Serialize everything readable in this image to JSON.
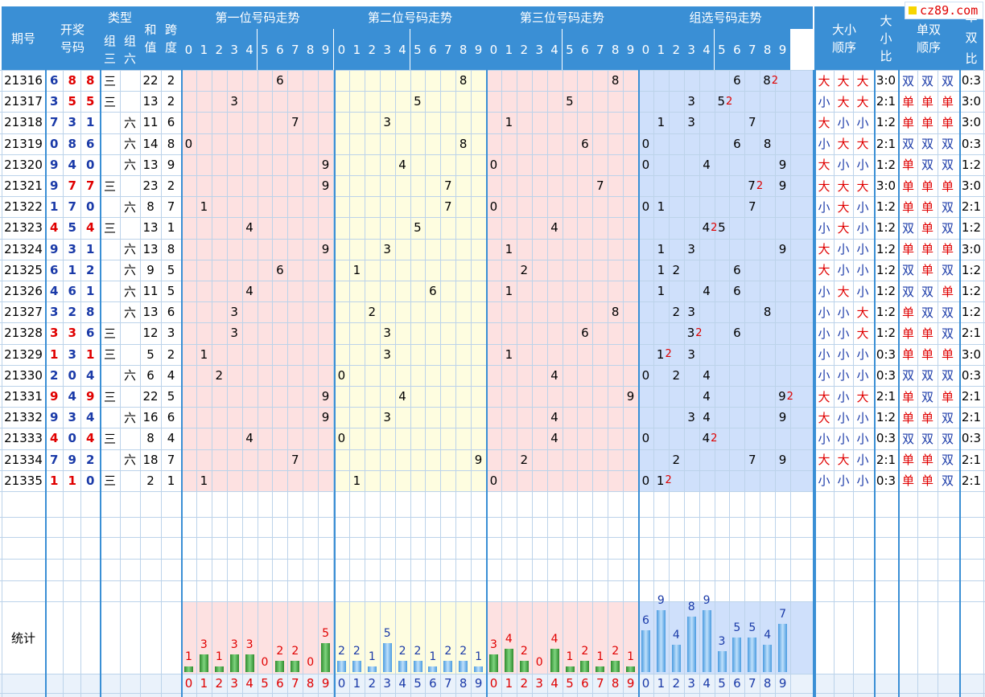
{
  "site": {
    "logo_text": "cz89.com"
  },
  "headers": {
    "period": "期号",
    "draw": "开奖号码",
    "type": "类型",
    "type_sub": [
      "组三",
      "组六"
    ],
    "sum": "和值",
    "span": "跨度",
    "pos1": "第一位号码走势",
    "pos2": "第二位号码走势",
    "pos3": "第三位号码走势",
    "group": "组选号码走势",
    "size_order": "大小顺序",
    "size_ratio": "大小比",
    "odd_order": "单双顺序",
    "odd_ratio": "单双比",
    "digits": [
      "0",
      "1",
      "2",
      "3",
      "4",
      "5",
      "6",
      "7",
      "8",
      "9"
    ]
  },
  "type_labels": {
    "zu3": "三",
    "zu6": "六"
  },
  "stats_label": "统计",
  "colors": {
    "header": "#3a8fd5",
    "pink": "#fde1e1",
    "yellow": "#fefde0",
    "blue_bg": "#cfe0fb",
    "red": "#e00000",
    "blue": "#1a3aa8"
  },
  "rows": [
    {
      "period": "21316",
      "digits": [
        6,
        8,
        8
      ],
      "type": "zu3",
      "sum": 22,
      "span": 2,
      "size": [
        "大",
        "大",
        "大"
      ],
      "size_ratio": "3:0",
      "odd": [
        "双",
        "双",
        "双"
      ],
      "odd_ratio": "0:3"
    },
    {
      "period": "21317",
      "digits": [
        3,
        5,
        5
      ],
      "type": "zu3",
      "sum": 13,
      "span": 2,
      "size": [
        "小",
        "大",
        "大"
      ],
      "size_ratio": "2:1",
      "odd": [
        "单",
        "单",
        "单"
      ],
      "odd_ratio": "3:0"
    },
    {
      "period": "21318",
      "digits": [
        7,
        3,
        1
      ],
      "type": "zu6",
      "sum": 11,
      "span": 6,
      "size": [
        "大",
        "小",
        "小"
      ],
      "size_ratio": "1:2",
      "odd": [
        "单",
        "单",
        "单"
      ],
      "odd_ratio": "3:0"
    },
    {
      "period": "21319",
      "digits": [
        0,
        8,
        6
      ],
      "type": "zu6",
      "sum": 14,
      "span": 8,
      "size": [
        "小",
        "大",
        "大"
      ],
      "size_ratio": "2:1",
      "odd": [
        "双",
        "双",
        "双"
      ],
      "odd_ratio": "0:3"
    },
    {
      "period": "21320",
      "digits": [
        9,
        4,
        0
      ],
      "type": "zu6",
      "sum": 13,
      "span": 9,
      "size": [
        "大",
        "小",
        "小"
      ],
      "size_ratio": "1:2",
      "odd": [
        "单",
        "双",
        "双"
      ],
      "odd_ratio": "1:2"
    },
    {
      "period": "21321",
      "digits": [
        9,
        7,
        7
      ],
      "type": "zu3",
      "sum": 23,
      "span": 2,
      "size": [
        "大",
        "大",
        "大"
      ],
      "size_ratio": "3:0",
      "odd": [
        "单",
        "单",
        "单"
      ],
      "odd_ratio": "3:0"
    },
    {
      "period": "21322",
      "digits": [
        1,
        7,
        0
      ],
      "type": "zu6",
      "sum": 8,
      "span": 7,
      "size": [
        "小",
        "大",
        "小"
      ],
      "size_ratio": "1:2",
      "odd": [
        "单",
        "单",
        "双"
      ],
      "odd_ratio": "2:1"
    },
    {
      "period": "21323",
      "digits": [
        4,
        5,
        4
      ],
      "type": "zu3",
      "sum": 13,
      "span": 1,
      "size": [
        "小",
        "大",
        "小"
      ],
      "size_ratio": "1:2",
      "odd": [
        "双",
        "单",
        "双"
      ],
      "odd_ratio": "1:2"
    },
    {
      "period": "21324",
      "digits": [
        9,
        3,
        1
      ],
      "type": "zu6",
      "sum": 13,
      "span": 8,
      "size": [
        "大",
        "小",
        "小"
      ],
      "size_ratio": "1:2",
      "odd": [
        "单",
        "单",
        "单"
      ],
      "odd_ratio": "3:0"
    },
    {
      "period": "21325",
      "digits": [
        6,
        1,
        2
      ],
      "type": "zu6",
      "sum": 9,
      "span": 5,
      "size": [
        "大",
        "小",
        "小"
      ],
      "size_ratio": "1:2",
      "odd": [
        "双",
        "单",
        "双"
      ],
      "odd_ratio": "1:2"
    },
    {
      "period": "21326",
      "digits": [
        4,
        6,
        1
      ],
      "type": "zu6",
      "sum": 11,
      "span": 5,
      "size": [
        "小",
        "大",
        "小"
      ],
      "size_ratio": "1:2",
      "odd": [
        "双",
        "双",
        "单"
      ],
      "odd_ratio": "1:2"
    },
    {
      "period": "21327",
      "digits": [
        3,
        2,
        8
      ],
      "type": "zu6",
      "sum": 13,
      "span": 6,
      "size": [
        "小",
        "小",
        "大"
      ],
      "size_ratio": "1:2",
      "odd": [
        "单",
        "双",
        "双"
      ],
      "odd_ratio": "1:2"
    },
    {
      "period": "21328",
      "digits": [
        3,
        3,
        6
      ],
      "type": "zu3",
      "sum": 12,
      "span": 3,
      "size": [
        "小",
        "小",
        "大"
      ],
      "size_ratio": "1:2",
      "odd": [
        "单",
        "单",
        "双"
      ],
      "odd_ratio": "2:1"
    },
    {
      "period": "21329",
      "digits": [
        1,
        3,
        1
      ],
      "type": "zu3",
      "sum": 5,
      "span": 2,
      "size": [
        "小",
        "小",
        "小"
      ],
      "size_ratio": "0:3",
      "odd": [
        "单",
        "单",
        "单"
      ],
      "odd_ratio": "3:0"
    },
    {
      "period": "21330",
      "digits": [
        2,
        0,
        4
      ],
      "type": "zu6",
      "sum": 6,
      "span": 4,
      "size": [
        "小",
        "小",
        "小"
      ],
      "size_ratio": "0:3",
      "odd": [
        "双",
        "双",
        "双"
      ],
      "odd_ratio": "0:3"
    },
    {
      "period": "21331",
      "digits": [
        9,
        4,
        9
      ],
      "type": "zu3",
      "sum": 22,
      "span": 5,
      "size": [
        "大",
        "小",
        "大"
      ],
      "size_ratio": "2:1",
      "odd": [
        "单",
        "双",
        "单"
      ],
      "odd_ratio": "2:1"
    },
    {
      "period": "21332",
      "digits": [
        9,
        3,
        4
      ],
      "type": "zu6",
      "sum": 16,
      "span": 6,
      "size": [
        "大",
        "小",
        "小"
      ],
      "size_ratio": "1:2",
      "odd": [
        "单",
        "单",
        "双"
      ],
      "odd_ratio": "2:1"
    },
    {
      "period": "21333",
      "digits": [
        4,
        0,
        4
      ],
      "type": "zu3",
      "sum": 8,
      "span": 4,
      "size": [
        "小",
        "小",
        "小"
      ],
      "size_ratio": "0:3",
      "odd": [
        "双",
        "双",
        "双"
      ],
      "odd_ratio": "0:3"
    },
    {
      "period": "21334",
      "digits": [
        7,
        9,
        2
      ],
      "type": "zu6",
      "sum": 18,
      "span": 7,
      "size": [
        "大",
        "大",
        "小"
      ],
      "size_ratio": "2:1",
      "odd": [
        "单",
        "单",
        "双"
      ],
      "odd_ratio": "2:1"
    },
    {
      "period": "21335",
      "digits": [
        1,
        1,
        0
      ],
      "type": "zu3",
      "sum": 2,
      "span": 1,
      "size": [
        "小",
        "小",
        "小"
      ],
      "size_ratio": "0:3",
      "odd": [
        "单",
        "单",
        "双"
      ],
      "odd_ratio": "2:1"
    }
  ],
  "chart_data": {
    "type": "bar",
    "categories": [
      "0",
      "1",
      "2",
      "3",
      "4",
      "5",
      "6",
      "7",
      "8",
      "9"
    ],
    "series": [
      {
        "values": [
          1,
          3,
          1,
          3,
          3,
          0,
          2,
          2,
          0,
          5
        ]
      },
      {
        "values": [
          2,
          2,
          1,
          5,
          2,
          2,
          1,
          2,
          2,
          1
        ]
      },
      {
        "values": [
          3,
          4,
          2,
          0,
          4,
          1,
          2,
          1,
          2,
          1
        ]
      },
      {
        "values": [
          6,
          9,
          4,
          8,
          9,
          3,
          5,
          5,
          4,
          7
        ]
      }
    ]
  }
}
